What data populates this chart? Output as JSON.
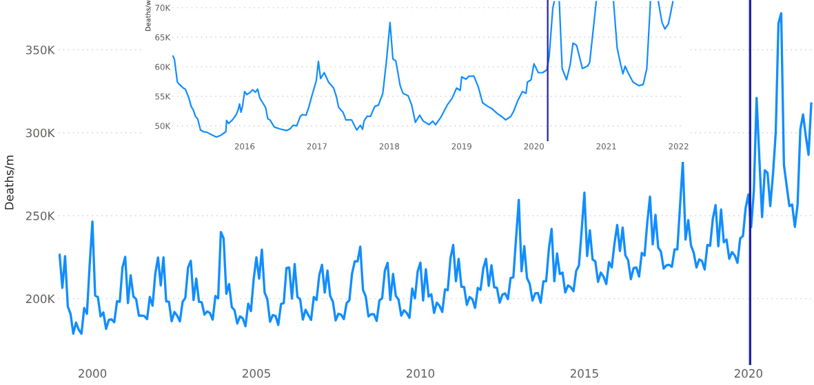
{
  "chart_data": [
    {
      "type": "line",
      "ylabel": "Deaths/m",
      "grid": "y",
      "xlim": [
        "1998-12-20",
        "2022-01-01"
      ],
      "xticks": [
        {
          "value": "2000-01",
          "label": "2000"
        },
        {
          "value": "2005-01",
          "label": "2005"
        },
        {
          "value": "2010-01",
          "label": "2010"
        },
        {
          "value": "2015-01",
          "label": "2015"
        },
        {
          "value": "2020-01",
          "label": "2020"
        }
      ],
      "ylim": [
        160000,
        380000
      ],
      "yticks": [
        {
          "value": 200000,
          "label": "200K"
        },
        {
          "value": 250000,
          "label": "250K"
        },
        {
          "value": 300000,
          "label": "300K"
        },
        {
          "value": 350000,
          "label": "350K"
        }
      ],
      "ref_lines": [
        {
          "axis": "x",
          "value": "2020-01-20",
          "label": null,
          "color": "#23239b"
        }
      ],
      "series": [
        {
          "color": "#118dff",
          "x": [
            "1999-01",
            "1999-02",
            "1999-03",
            "1999-04",
            "1999-05",
            "1999-06",
            "1999-07",
            "1999-08",
            "1999-09",
            "1999-10",
            "1999-11",
            "1999-12",
            "2000-01",
            "2000-02",
            "2000-03",
            "2000-04",
            "2000-05",
            "2000-06",
            "2000-07",
            "2000-08",
            "2000-09",
            "2000-10",
            "2000-11",
            "2000-12",
            "2001-01",
            "2001-02",
            "2001-03",
            "2001-04",
            "2001-05",
            "2001-06",
            "2001-07",
            "2001-08",
            "2001-09",
            "2001-10",
            "2001-11",
            "2001-12",
            "2002-01",
            "2002-02",
            "2002-03",
            "2002-04",
            "2002-05",
            "2002-06",
            "2002-07",
            "2002-08",
            "2002-09",
            "2002-10",
            "2002-11",
            "2002-12",
            "2003-01",
            "2003-02",
            "2003-03",
            "2003-04",
            "2003-05",
            "2003-06",
            "2003-07",
            "2003-08",
            "2003-09",
            "2003-10",
            "2003-11",
            "2003-12",
            "2004-01",
            "2004-02",
            "2004-03",
            "2004-04",
            "2004-05",
            "2004-06",
            "2004-07",
            "2004-08",
            "2004-09",
            "2004-10",
            "2004-11",
            "2004-12",
            "2005-01",
            "2005-02",
            "2005-03",
            "2005-04",
            "2005-05",
            "2005-06",
            "2005-07",
            "2005-08",
            "2005-09",
            "2005-10",
            "2005-11",
            "2005-12",
            "2006-01",
            "2006-02",
            "2006-03",
            "2006-04",
            "2006-05",
            "2006-06",
            "2006-07",
            "2006-08",
            "2006-09",
            "2006-10",
            "2006-11",
            "2006-12",
            "2007-01",
            "2007-02",
            "2007-03",
            "2007-04",
            "2007-05",
            "2007-06",
            "2007-07",
            "2007-08",
            "2007-09",
            "2007-10",
            "2007-11",
            "2007-12",
            "2008-01",
            "2008-02",
            "2008-03",
            "2008-04",
            "2008-05",
            "2008-06",
            "2008-07",
            "2008-08",
            "2008-09",
            "2008-10",
            "2008-11",
            "2008-12",
            "2009-01",
            "2009-02",
            "2009-03",
            "2009-04",
            "2009-05",
            "2009-06",
            "2009-07",
            "2009-08",
            "2009-09",
            "2009-10",
            "2009-11",
            "2009-12",
            "2010-01",
            "2010-02",
            "2010-03",
            "2010-04",
            "2010-05",
            "2010-06",
            "2010-07",
            "2010-08",
            "2010-09",
            "2010-10",
            "2010-11",
            "2010-12",
            "2011-01",
            "2011-02",
            "2011-03",
            "2011-04",
            "2011-05",
            "2011-06",
            "2011-07",
            "2011-08",
            "2011-09",
            "2011-10",
            "2011-11",
            "2011-12",
            "2012-01",
            "2012-02",
            "2012-03",
            "2012-04",
            "2012-05",
            "2012-06",
            "2012-07",
            "2012-08",
            "2012-09",
            "2012-10",
            "2012-11",
            "2012-12",
            "2013-01",
            "2013-02",
            "2013-03",
            "2013-04",
            "2013-05",
            "2013-06",
            "2013-07",
            "2013-08",
            "2013-09",
            "2013-10",
            "2013-11",
            "2013-12",
            "2014-01",
            "2014-02",
            "2014-03",
            "2014-04",
            "2014-05",
            "2014-06",
            "2014-07",
            "2014-08",
            "2014-09",
            "2014-10",
            "2014-11",
            "2014-12",
            "2015-01",
            "2015-02",
            "2015-03",
            "2015-04",
            "2015-05",
            "2015-06",
            "2015-07",
            "2015-08",
            "2015-09",
            "2015-10",
            "2015-11",
            "2015-12",
            "2016-01",
            "2016-02",
            "2016-03",
            "2016-04",
            "2016-05",
            "2016-06",
            "2016-07",
            "2016-08",
            "2016-09",
            "2016-10",
            "2016-11",
            "2016-12",
            "2017-01",
            "2017-02",
            "2017-03",
            "2017-04",
            "2017-05",
            "2017-06",
            "2017-07",
            "2017-08",
            "2017-09",
            "2017-10",
            "2017-11",
            "2017-12",
            "2018-01",
            "2018-02",
            "2018-03",
            "2018-04",
            "2018-05",
            "2018-06",
            "2018-07",
            "2018-08",
            "2018-09",
            "2018-10",
            "2018-11",
            "2018-12",
            "2019-01",
            "2019-02",
            "2019-03",
            "2019-04",
            "2019-05",
            "2019-06",
            "2019-07",
            "2019-08",
            "2019-09",
            "2019-10",
            "2019-11",
            "2019-12",
            "2020-01",
            "2020-02",
            "2020-03",
            "2020-04",
            "2020-05",
            "2020-06",
            "2020-07",
            "2020-08",
            "2020-09",
            "2020-10",
            "2020-11",
            "2020-12",
            "2021-01",
            "2021-02",
            "2021-03",
            "2021-04",
            "2021-05",
            "2021-06",
            "2021-07",
            "2021-08",
            "2021-09",
            "2021-10",
            "2021-11",
            "2021-12"
          ],
          "values": [
            226400,
            206500,
            225600,
            195200,
            190900,
            178900,
            185600,
            181300,
            178900,
            194400,
            190900,
            220400,
            246500,
            201800,
            201000,
            189300,
            191700,
            181800,
            187200,
            187500,
            185800,
            198400,
            198100,
            218800,
            225200,
            197300,
            214100,
            201300,
            199700,
            189800,
            189800,
            189500,
            187700,
            201000,
            195800,
            215000,
            224800,
            208000,
            224900,
            198400,
            198100,
            186400,
            192000,
            189800,
            186400,
            198100,
            200500,
            218800,
            222800,
            199200,
            212100,
            198100,
            197800,
            190400,
            192300,
            191400,
            187400,
            201600,
            200200,
            240100,
            236400,
            202900,
            208800,
            194900,
            193000,
            185000,
            189300,
            188200,
            183400,
            197000,
            192500,
            211700,
            224900,
            212100,
            229600,
            203700,
            199700,
            186100,
            190100,
            189600,
            184200,
            196800,
            197300,
            218500,
            218800,
            200000,
            220800,
            201000,
            199700,
            187400,
            193300,
            190100,
            187200,
            201000,
            199200,
            214100,
            220400,
            203700,
            216900,
            201600,
            198100,
            186900,
            190900,
            190400,
            187700,
            197300,
            198900,
            215300,
            222500,
            222400,
            231300,
            205300,
            201300,
            189300,
            190600,
            190600,
            186600,
            198900,
            200200,
            216900,
            221600,
            199200,
            214900,
            201600,
            199400,
            189800,
            193000,
            191400,
            188500,
            206100,
            200200,
            216500,
            221700,
            198900,
            217700,
            201300,
            202600,
            191400,
            197600,
            195700,
            192000,
            205600,
            205100,
            224400,
            232400,
            210500,
            224000,
            207200,
            207000,
            196200,
            201000,
            199700,
            194400,
            206500,
            205300,
            218100,
            224100,
            207700,
            220100,
            206900,
            206500,
            197600,
            202400,
            203200,
            199700,
            212500,
            212900,
            236400,
            259600,
            216500,
            231600,
            212500,
            208800,
            198900,
            203200,
            203400,
            197600,
            210500,
            210500,
            230000,
            242000,
            210500,
            227300,
            214900,
            215700,
            203700,
            208000,
            206900,
            204500,
            216800,
            220000,
            241200,
            263900,
            225700,
            241200,
            223600,
            222500,
            210100,
            215700,
            213300,
            208800,
            222000,
            218800,
            233200,
            244400,
            228800,
            242800,
            226000,
            223200,
            211700,
            218500,
            218800,
            213300,
            227600,
            226000,
            246000,
            261500,
            232700,
            250500,
            230800,
            228400,
            218100,
            220100,
            220400,
            219200,
            229700,
            229700,
            256400,
            282400,
            235600,
            247300,
            232100,
            227600,
            218800,
            223600,
            222800,
            217600,
            232400,
            231900,
            248400,
            256400,
            231600,
            253700,
            234000,
            235600,
            224000,
            228100,
            226000,
            221600,
            236400,
            237700,
            254800,
            262800,
            243100,
            265000,
            321000,
            285000,
            249200,
            277400,
            275800,
            255800,
            275000,
            300000,
            366000,
            372000,
            280600,
            268000,
            255800,
            256700,
            243300,
            256700,
            302000,
            311000,
            298000,
            286700,
            317600
          ]
        }
      ]
    },
    {
      "type": "line",
      "ylabel": "Deaths/w",
      "grid": "y",
      "xlim": [
        2015.0,
        2022.08
      ],
      "xticks": [
        2016,
        2017,
        2018,
        2019,
        2020,
        2021,
        2022
      ],
      "ylim": [
        47400,
        71300
      ],
      "yticks": [
        {
          "value": 50000,
          "label": "50K"
        },
        {
          "value": 55000,
          "label": "55K"
        },
        {
          "value": 60000,
          "label": "60K"
        },
        {
          "value": 65000,
          "label": "65K"
        },
        {
          "value": 70000,
          "label": "70K"
        }
      ],
      "ref_lines": [
        {
          "axis": "x",
          "value": 2020.19,
          "label": null,
          "color": "#23239b"
        }
      ],
      "series": [
        {
          "color": "#118dff",
          "x": [
            2015.01,
            2015.03,
            2015.07,
            2015.1,
            2015.15,
            2015.18,
            2015.23,
            2015.26,
            2015.29,
            2015.32,
            2015.35,
            2015.39,
            2015.43,
            2015.48,
            2015.54,
            2015.61,
            2015.67,
            2015.74,
            2015.75,
            2015.78,
            2015.83,
            2015.88,
            2015.91,
            2015.93,
            2015.95,
            2015.97,
            2016.0,
            2016.03,
            2016.08,
            2016.11,
            2016.15,
            2016.18,
            2016.21,
            2016.25,
            2016.29,
            2016.32,
            2016.35,
            2016.41,
            2016.48,
            2016.58,
            2016.63,
            2016.67,
            2016.72,
            2016.77,
            2016.8,
            2016.85,
            2016.89,
            2016.93,
            2016.99,
            2017.02,
            2017.05,
            2017.1,
            2017.16,
            2017.23,
            2017.27,
            2017.3,
            2017.36,
            2017.4,
            2017.48,
            2017.52,
            2017.55,
            2017.6,
            2017.63,
            2017.65,
            2017.69,
            2017.74,
            2017.8,
            2017.85,
            2017.91,
            2017.96,
            2018.01,
            2018.05,
            2018.09,
            2018.15,
            2018.19,
            2018.26,
            2018.31,
            2018.36,
            2018.42,
            2018.47,
            2018.55,
            2018.6,
            2018.64,
            2018.71,
            2018.8,
            2018.87,
            2018.93,
            2018.98,
            2019.0,
            2019.06,
            2019.1,
            2019.17,
            2019.23,
            2019.29,
            2019.36,
            2019.42,
            2019.49,
            2019.55,
            2019.61,
            2019.68,
            2019.72,
            2019.77,
            2019.84,
            2019.89,
            2019.91,
            2019.96,
            2020.0,
            2020.06,
            2020.12,
            2020.18,
            2020.21,
            2020.26,
            2020.28,
            2020.3,
            2020.35,
            2020.39,
            2020.45,
            2020.5,
            2020.54,
            2020.59,
            2020.67,
            2020.74,
            2020.77,
            2020.83,
            2020.86,
            2020.95,
            2021.1,
            2021.15,
            2021.2,
            2021.23,
            2021.26,
            2021.3,
            2021.37,
            2021.45,
            2021.51,
            2021.56,
            2021.61,
            2021.66,
            2021.72,
            2021.77,
            2021.81,
            2021.86,
            2021.92
          ],
          "values": [
            61800,
            61200,
            57400,
            57000,
            56400,
            56200,
            54700,
            53300,
            52700,
            51600,
            51200,
            49300,
            49000,
            48900,
            48500,
            48100,
            48400,
            49000,
            50900,
            50400,
            51000,
            51800,
            52700,
            53700,
            52300,
            53300,
            55800,
            55300,
            55700,
            56100,
            55700,
            56200,
            54700,
            53900,
            53100,
            51200,
            51000,
            49800,
            49500,
            49200,
            49500,
            50100,
            50000,
            51600,
            51900,
            51800,
            53300,
            55100,
            57600,
            60900,
            58000,
            59000,
            57400,
            56400,
            54900,
            53100,
            52300,
            51000,
            51000,
            50000,
            49300,
            50100,
            49400,
            50800,
            51600,
            51600,
            53300,
            53500,
            55500,
            60900,
            67500,
            61300,
            61000,
            56800,
            55500,
            55100,
            53500,
            50600,
            51800,
            50800,
            50200,
            50800,
            50200,
            51400,
            53500,
            54700,
            56400,
            56000,
            58300,
            57900,
            58400,
            58400,
            56600,
            53900,
            53300,
            52900,
            52100,
            51600,
            51000,
            51600,
            52500,
            54100,
            55800,
            55500,
            57400,
            57800,
            60500,
            59000,
            59000,
            59500,
            61700,
            69900,
            71000,
            null,
            71000,
            59700,
            57800,
            60300,
            64000,
            63600,
            59700,
            60100,
            60700,
            67500,
            71000,
            null,
            71000,
            63200,
            60300,
            58800,
            60100,
            59000,
            57400,
            56800,
            57000,
            59700,
            71000,
            null,
            71000,
            67500,
            66400,
            67300,
            71000
          ]
        }
      ]
    }
  ]
}
